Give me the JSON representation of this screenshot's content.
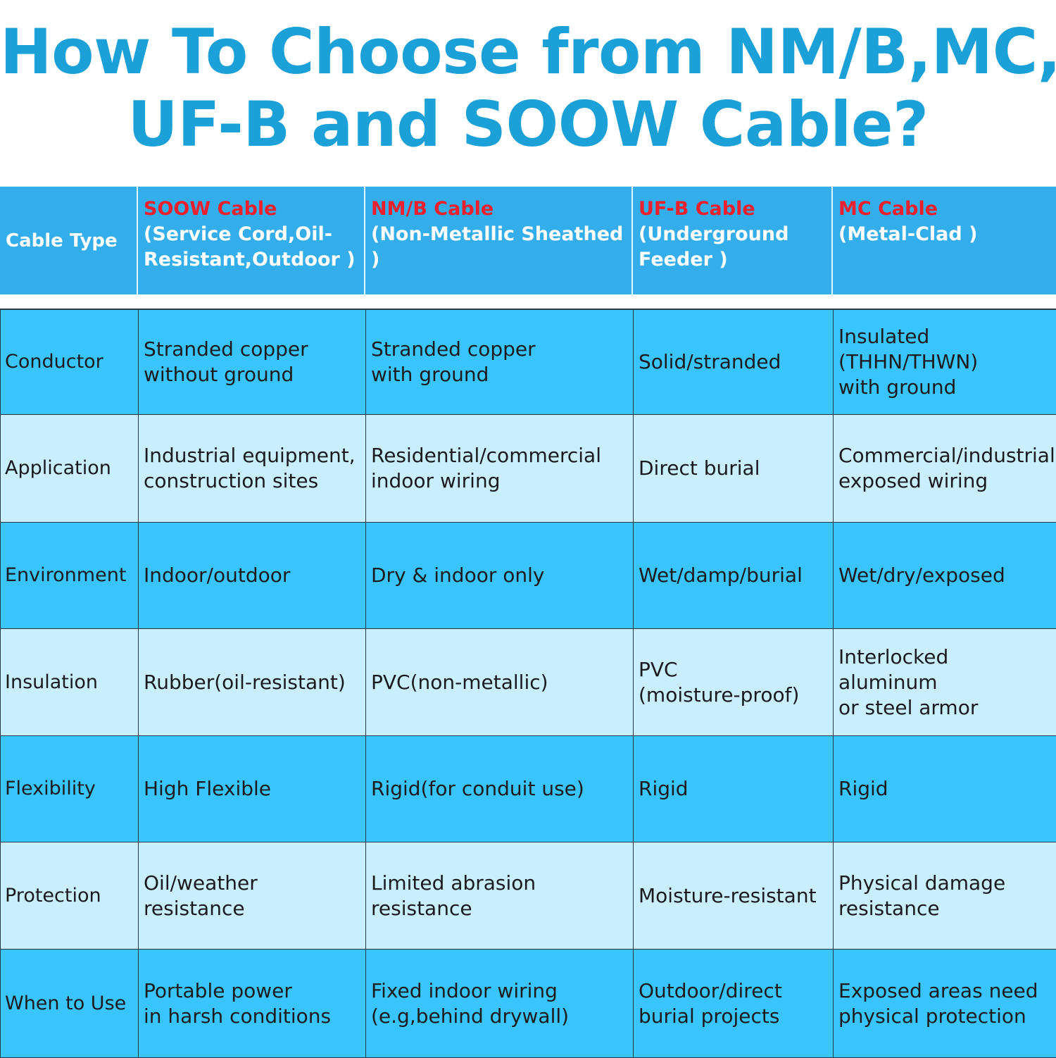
{
  "title": {
    "line1": "How To Choose from NM/B,MC,",
    "line2": "UF-B and SOOW Cable?"
  },
  "header": {
    "row_label": "Cable Type",
    "columns": [
      {
        "name": "SOOW Cable",
        "desc": "(Service Cord,Oil-\nResistant,Outdoor )"
      },
      {
        "name": "NM/B Cable",
        "desc": "(Non-Metallic Sheathed )"
      },
      {
        "name": "UF-B Cable",
        "desc": "(Underground\nFeeder )"
      },
      {
        "name": "MC Cable",
        "desc": "(Metal-Clad )"
      }
    ]
  },
  "rows": [
    {
      "label": "Conductor",
      "cells": [
        "Stranded copper\nwithout ground",
        "Stranded copper\nwith ground",
        "Solid/stranded",
        "Insulated\n(THHN/THWN)\nwith ground"
      ]
    },
    {
      "label": "Application",
      "cells": [
        "Industrial equipment,\nconstruction sites",
        "Residential/commercial\nindoor wiring",
        "Direct burial",
        "Commercial/industrial\nexposed wiring"
      ]
    },
    {
      "label": "Environment",
      "cells": [
        "Indoor/outdoor",
        "Dry & indoor only",
        "Wet/damp/burial",
        "Wet/dry/exposed"
      ]
    },
    {
      "label": "Insulation",
      "cells": [
        "Rubber(oil-resistant)",
        "PVC(non-metallic)",
        "PVC\n(moisture-proof)",
        "Interlocked\naluminum\nor steel armor"
      ]
    },
    {
      "label": "Flexibility",
      "cells": [
        "High Flexible",
        "Rigid(for conduit use)",
        "Rigid",
        "Rigid"
      ]
    },
    {
      "label": "Protection",
      "cells": [
        "Oil/weather\nresistance",
        "Limited abrasion\nresistance",
        "Moisture-resistant",
        "Physical damage\nresistance"
      ]
    },
    {
      "label": "When to Use",
      "cells": [
        "Portable power\nin harsh conditions",
        "Fixed indoor wiring\n(e.g,behind drywall)",
        "Outdoor/direct\nburial projects",
        "Exposed areas need\nphysical protection"
      ]
    }
  ],
  "colors": {
    "title": "#1ba0d8",
    "header_bg": "#33aeea",
    "cable_name": "#ee1f2d",
    "row_dark": "#39c5fc",
    "row_light": "#c9efff"
  }
}
